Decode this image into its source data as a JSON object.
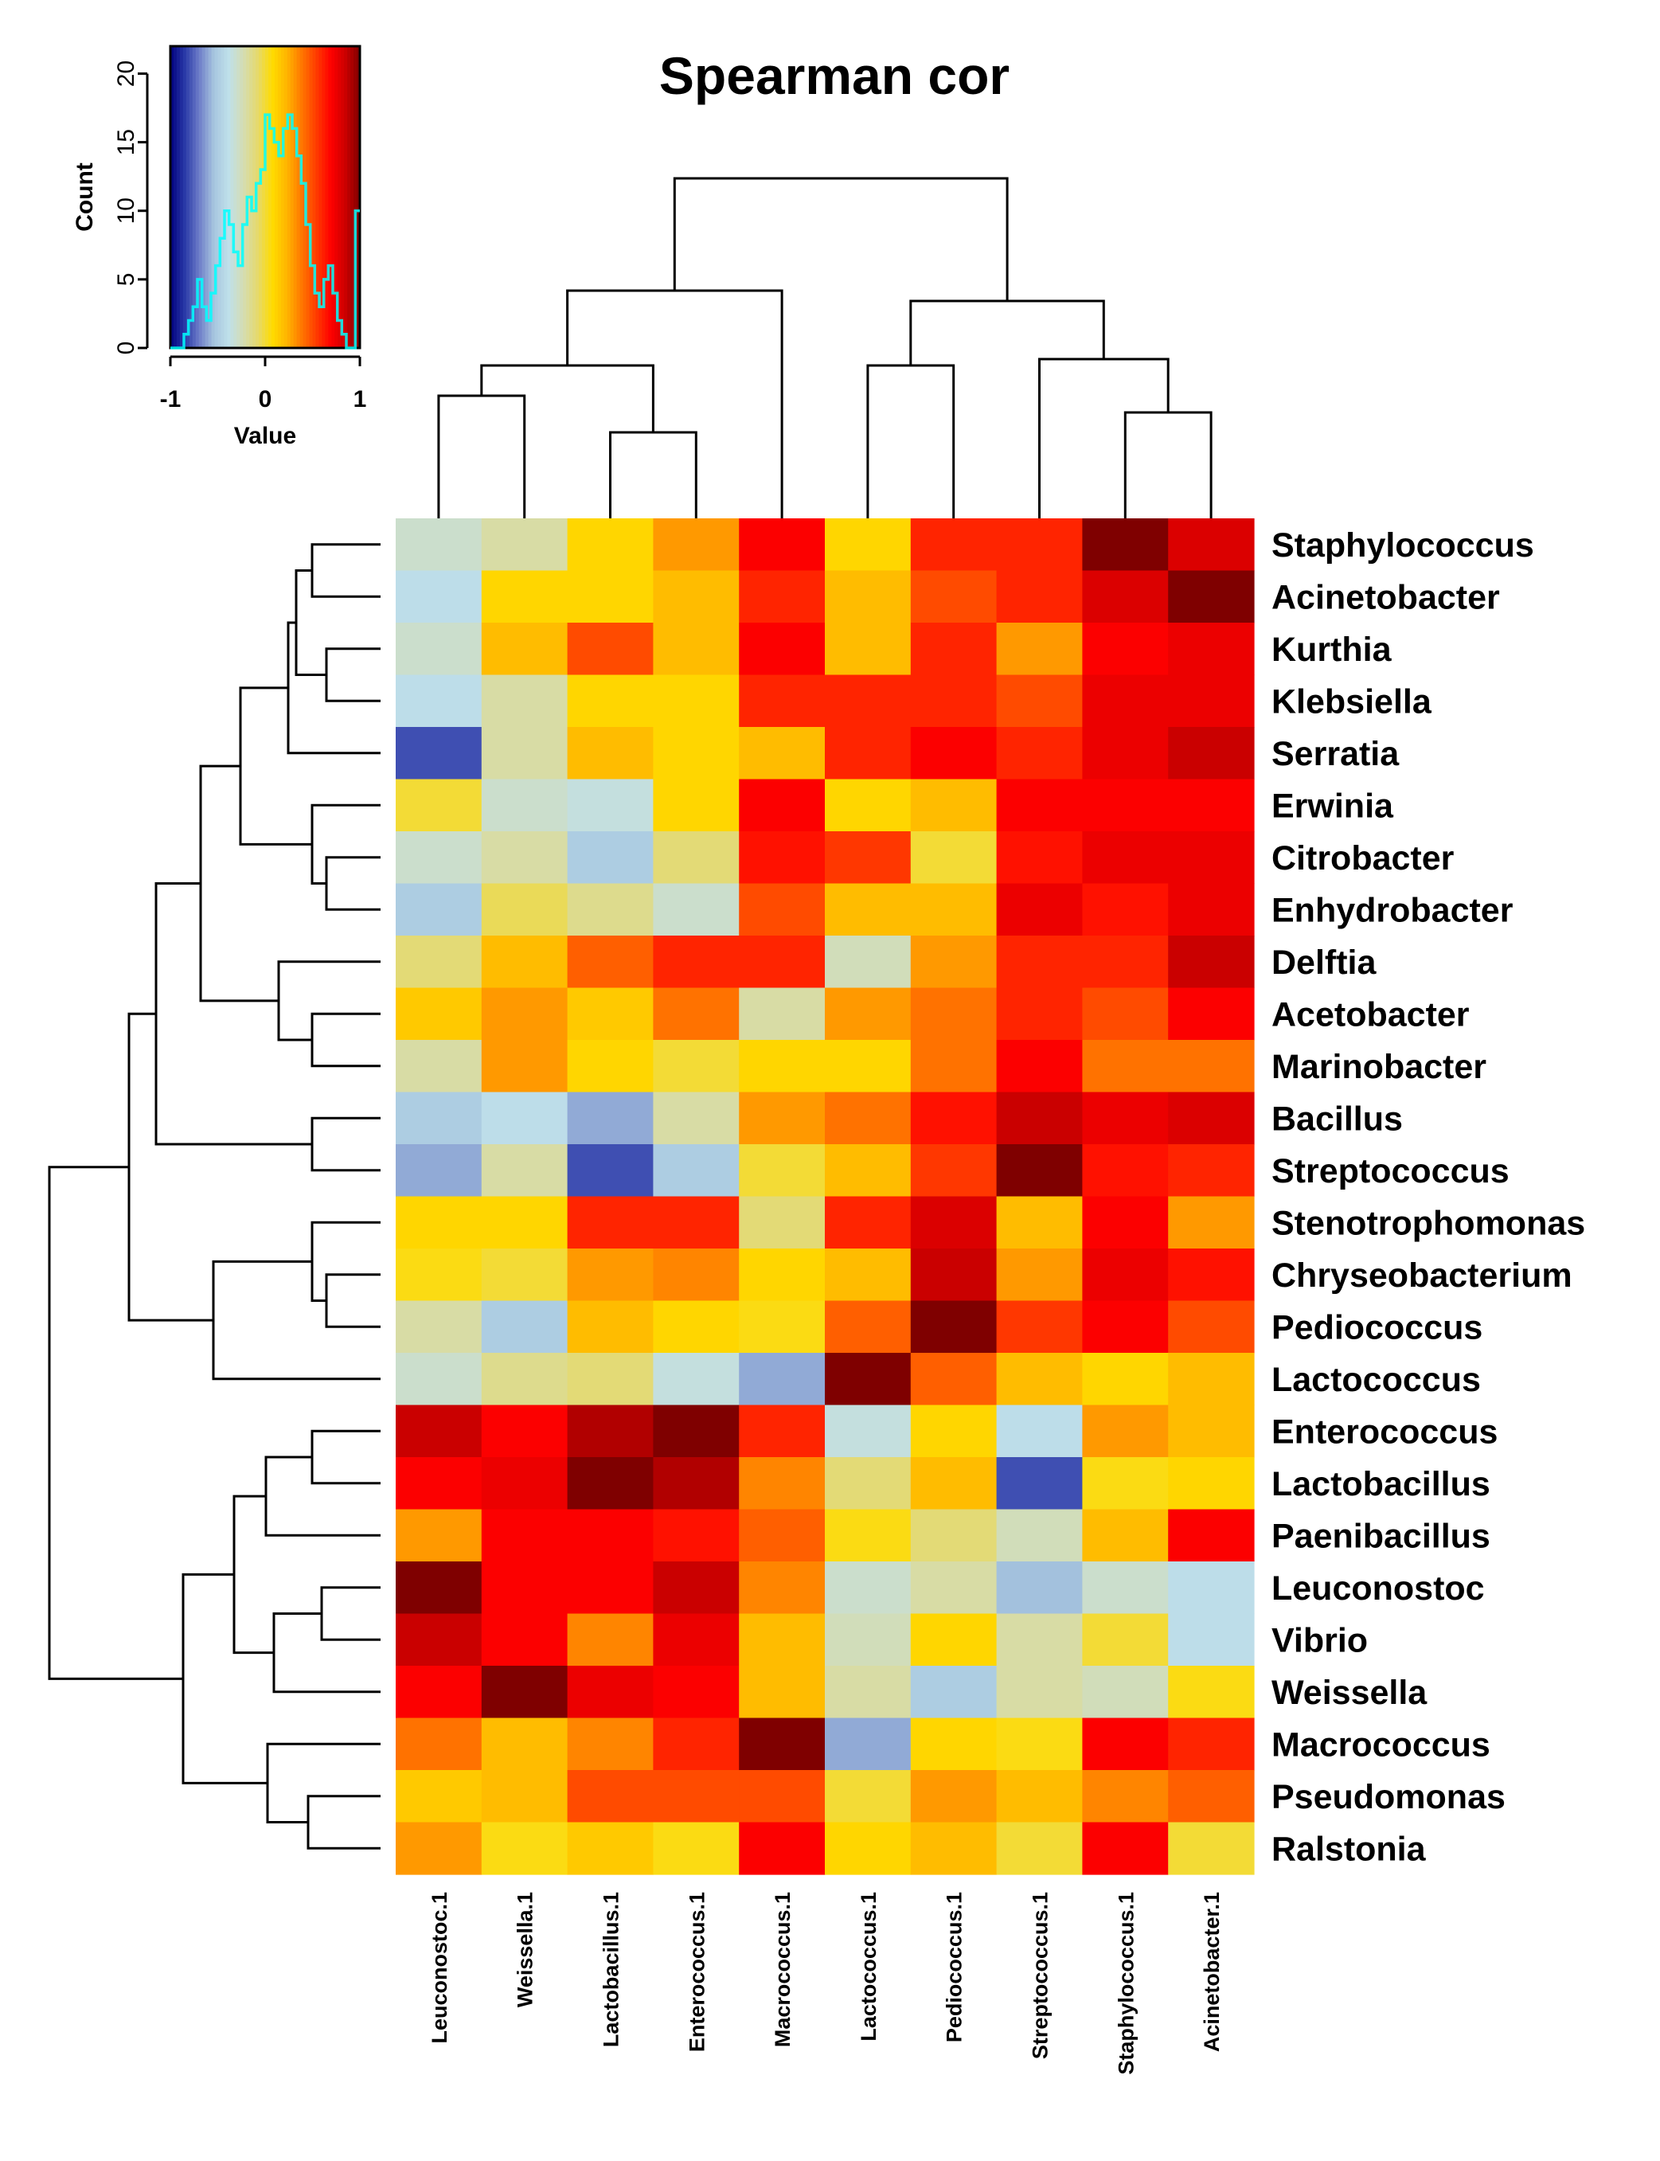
{
  "chart_data": {
    "type": "heatmap",
    "title": "Spearman cor",
    "color_scale": {
      "range": [
        -1,
        1
      ],
      "stops": [
        "#00007f",
        "#2a3aa8",
        "#6f7fc9",
        "#a7c6df",
        "#bfe0ea",
        "#d4ddb3",
        "#e6d96b",
        "#ffdc00",
        "#ffb400",
        "#ff7800",
        "#ff3c00",
        "#ff0000",
        "#cc0000",
        "#7f0000"
      ]
    },
    "rows": [
      "Staphylococcus",
      "Acinetobacter",
      "Kurthia",
      "Klebsiella",
      "Serratia",
      "Erwinia",
      "Citrobacter",
      "Enhydrobacter",
      "Delftia",
      "Acetobacter",
      "Marinobacter",
      "Bacillus",
      "Streptococcus",
      "Stenotrophomonas",
      "Chryseobacterium",
      "Pediococcus",
      "Lactococcus",
      "Enterococcus",
      "Lactobacillus",
      "Paenibacillus",
      "Leuconostoc",
      "Vibrio",
      "Weissella",
      "Macrococcus",
      "Pseudomonas",
      "Ralstonia"
    ],
    "columns": [
      "Leuconostoc.1",
      "Weissella.1",
      "Lactobacillus.1",
      "Enterococcus.1",
      "Macrococcus.1",
      "Lactococcus.1",
      "Pediococcus.1",
      "Streptococcus.1",
      "Staphylococcus.1",
      "Acinetobacter.1"
    ],
    "values": [
      [
        -0.3,
        -0.2,
        0.1,
        0.3,
        0.7,
        0.1,
        0.6,
        0.6,
        1.0,
        0.8
      ],
      [
        -0.4,
        0.1,
        0.1,
        0.2,
        0.6,
        0.2,
        0.5,
        0.6,
        0.8,
        1.0
      ],
      [
        -0.3,
        0.2,
        0.5,
        0.2,
        0.7,
        0.2,
        0.6,
        0.3,
        0.7,
        0.75
      ],
      [
        -0.4,
        -0.2,
        0.1,
        0.1,
        0.6,
        0.6,
        0.6,
        0.5,
        0.75,
        0.75
      ],
      [
        -0.8,
        -0.2,
        0.2,
        0.1,
        0.2,
        0.6,
        0.7,
        0.6,
        0.75,
        0.85
      ],
      [
        0.0,
        -0.3,
        -0.35,
        0.1,
        0.7,
        0.1,
        0.2,
        0.7,
        0.7,
        0.7
      ],
      [
        -0.3,
        -0.2,
        -0.5,
        -0.1,
        0.65,
        0.55,
        0.0,
        0.65,
        0.75,
        0.75
      ],
      [
        -0.5,
        -0.05,
        -0.15,
        -0.3,
        0.5,
        0.2,
        0.2,
        0.75,
        0.65,
        0.75
      ],
      [
        -0.1,
        0.2,
        0.45,
        0.6,
        0.6,
        -0.25,
        0.3,
        0.6,
        0.6,
        0.85
      ],
      [
        0.15,
        0.3,
        0.15,
        0.4,
        -0.2,
        0.3,
        0.4,
        0.6,
        0.5,
        0.7
      ],
      [
        -0.2,
        0.3,
        0.1,
        0.0,
        0.1,
        0.1,
        0.4,
        0.7,
        0.4,
        0.4
      ],
      [
        -0.5,
        -0.4,
        -0.6,
        -0.2,
        0.3,
        0.4,
        0.65,
        0.85,
        0.75,
        0.8
      ],
      [
        -0.6,
        -0.2,
        -0.8,
        -0.5,
        0.0,
        0.2,
        0.55,
        1.0,
        0.65,
        0.6
      ],
      [
        0.1,
        0.1,
        0.6,
        0.6,
        -0.1,
        0.6,
        0.8,
        0.2,
        0.7,
        0.3
      ],
      [
        0.05,
        0.0,
        0.3,
        0.35,
        0.1,
        0.2,
        0.85,
        0.3,
        0.75,
        0.65
      ],
      [
        -0.2,
        -0.5,
        0.2,
        0.1,
        0.05,
        0.45,
        1.0,
        0.55,
        0.7,
        0.5
      ],
      [
        -0.3,
        -0.15,
        -0.1,
        -0.35,
        -0.6,
        1.0,
        0.45,
        0.2,
        0.1,
        0.2
      ],
      [
        0.85,
        0.7,
        0.9,
        1.0,
        0.6,
        -0.35,
        0.1,
        -0.4,
        0.3,
        0.2
      ],
      [
        0.7,
        0.75,
        1.0,
        0.9,
        0.35,
        -0.1,
        0.2,
        -0.8,
        0.05,
        0.1
      ],
      [
        0.3,
        0.7,
        0.7,
        0.65,
        0.45,
        0.05,
        -0.1,
        -0.25,
        0.2,
        0.7
      ],
      [
        1.0,
        0.7,
        0.7,
        0.85,
        0.35,
        -0.3,
        -0.2,
        -0.55,
        -0.3,
        -0.4
      ],
      [
        0.85,
        0.7,
        0.35,
        0.75,
        0.2,
        -0.25,
        0.1,
        -0.2,
        0.0,
        -0.4
      ],
      [
        0.7,
        1.0,
        0.75,
        0.7,
        0.2,
        -0.2,
        -0.5,
        -0.2,
        -0.25,
        0.05
      ],
      [
        0.4,
        0.2,
        0.35,
        0.6,
        1.0,
        -0.6,
        0.1,
        0.05,
        0.7,
        0.6
      ],
      [
        0.15,
        0.2,
        0.5,
        0.5,
        0.5,
        0.0,
        0.3,
        0.2,
        0.35,
        0.45
      ],
      [
        0.3,
        0.05,
        0.15,
        0.05,
        0.7,
        0.1,
        0.2,
        0.0,
        0.7,
        0.0
      ]
    ],
    "color_key": {
      "xlabel": "Value",
      "ylabel": "Count",
      "xticks": [
        "-1",
        "0",
        "1"
      ],
      "yticks": [
        "0",
        "5",
        "10",
        "15",
        "20"
      ],
      "ylim": [
        0,
        22
      ],
      "histogram_color": "#00ffff",
      "histogram_counts": [
        0,
        0,
        0,
        1,
        2,
        3,
        5,
        3,
        2,
        4,
        6,
        8,
        10,
        9,
        7,
        6,
        9,
        11,
        10,
        12,
        13,
        17,
        16,
        15,
        14,
        16,
        17,
        16,
        14,
        12,
        9,
        6,
        4,
        3,
        5,
        6,
        4,
        2,
        1,
        0,
        0,
        10
      ]
    }
  }
}
